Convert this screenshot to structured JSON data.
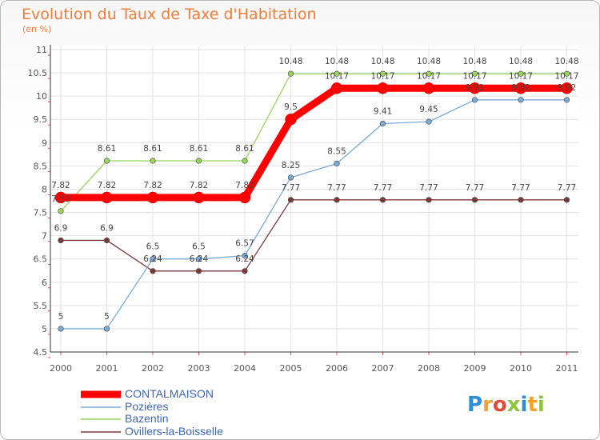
{
  "title": "Evolution du Taux de Taxe d'Habitation",
  "subtitle": "(en %)",
  "logo": {
    "p": "P",
    "r": "r",
    "o": "o",
    "x": "x",
    "i": "i",
    "t": "t",
    "i2": "i"
  },
  "colors": {
    "title": "#f07d3a",
    "legend_text": "#3b66b5",
    "grid": "#e2e2e2",
    "axis": "#333333"
  },
  "chart_data": {
    "type": "line",
    "title": "Evolution du Taux de Taxe d'Habitation",
    "ylabel": "(en %)",
    "xlabel": "",
    "x": [
      "2000",
      "2001",
      "2002",
      "2003",
      "2004",
      "2005",
      "2006",
      "2007",
      "2008",
      "2009",
      "2010",
      "2011"
    ],
    "ylim": [
      4.5,
      11
    ],
    "yticks": [
      "4.5",
      "5",
      "5.5",
      "6",
      "6.5",
      "7",
      "7.5",
      "8",
      "8.5",
      "9",
      "9.5",
      "10",
      "10.5",
      "11"
    ],
    "series": [
      {
        "name": "CONTALMAISON",
        "color": "#ff0000",
        "values": [
          7.82,
          7.82,
          7.82,
          7.82,
          7.82,
          9.5,
          10.17,
          10.17,
          10.17,
          10.17,
          10.17,
          10.17
        ],
        "labels": [
          "7.82",
          "7.82",
          "7.82",
          "7.82",
          "7.82",
          "9.5",
          "10.17",
          "10.17",
          "10.17",
          "10.17",
          "10.17",
          "10.17"
        ]
      },
      {
        "name": "Pozières",
        "color": "#7aaad8",
        "values": [
          5,
          5,
          6.5,
          6.5,
          6.57,
          8.25,
          8.55,
          9.41,
          9.45,
          9.92,
          9.92,
          9.92
        ],
        "labels": [
          "5",
          "5",
          "6.5",
          "6.5",
          "6.57",
          "8.25",
          "8.55",
          "9.41",
          "9.45",
          "9.92",
          "9.92",
          "9.92"
        ]
      },
      {
        "name": "Bazentin",
        "color": "#98d45a",
        "values": [
          7.53,
          8.61,
          8.61,
          8.61,
          8.61,
          10.48,
          10.48,
          10.48,
          10.48,
          10.48,
          10.48,
          10.48
        ],
        "labels": [
          "7.53",
          "8.61",
          "8.61",
          "8.61",
          "8.61",
          "10.48",
          "10.48",
          "10.48",
          "10.48",
          "10.48",
          "10.48",
          "10.48"
        ]
      },
      {
        "name": "Ovillers-la-Boisselle",
        "color": "#7a3a3a",
        "values": [
          6.9,
          6.9,
          6.24,
          6.24,
          6.24,
          7.77,
          7.77,
          7.77,
          7.77,
          7.77,
          7.77,
          7.77
        ],
        "labels": [
          "6.9",
          "6.9",
          "6.24",
          "6.24",
          "6.24",
          "7.77",
          "7.77",
          "7.77",
          "7.77",
          "7.77",
          "7.77",
          "7.77"
        ]
      }
    ]
  }
}
